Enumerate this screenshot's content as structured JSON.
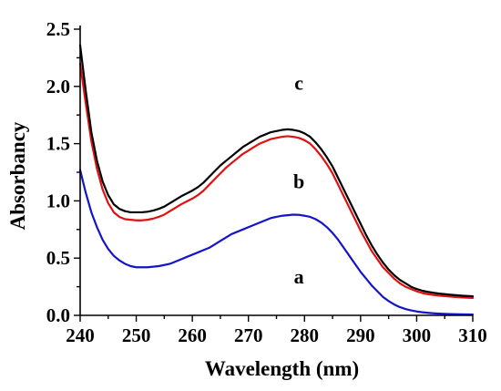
{
  "chart_data": {
    "type": "line",
    "xlabel": "Wavelength (nm)",
    "ylabel": "Absorbancy",
    "xlim": [
      240,
      310
    ],
    "ylim": [
      0.0,
      2.5
    ],
    "x_ticks": [
      "240",
      "250",
      "260",
      "270",
      "280",
      "290",
      "300",
      "310"
    ],
    "y_ticks": [
      "0.0",
      "0.5",
      "1.0",
      "1.5",
      "2.0",
      "2.5"
    ],
    "x_minor_step": 5,
    "y_minor_step": 0.25,
    "grid": false,
    "series": [
      {
        "name": "a",
        "color": "#1414c8",
        "x": [
          240,
          241,
          242,
          243,
          244,
          245,
          246,
          247,
          248,
          249,
          250,
          251,
          252,
          253,
          254,
          255,
          256,
          257,
          258,
          259,
          260,
          261,
          262,
          263,
          264,
          265,
          266,
          267,
          268,
          269,
          270,
          271,
          272,
          273,
          274,
          275,
          276,
          277,
          278,
          279,
          280,
          281,
          282,
          283,
          284,
          285,
          286,
          287,
          288,
          289,
          290,
          291,
          292,
          293,
          294,
          295,
          296,
          297,
          298,
          299,
          300,
          301,
          302,
          303,
          304,
          305,
          306,
          307,
          308,
          309,
          310
        ],
        "values": [
          1.27,
          1.07,
          0.9,
          0.77,
          0.66,
          0.58,
          0.52,
          0.48,
          0.45,
          0.43,
          0.42,
          0.42,
          0.42,
          0.425,
          0.43,
          0.44,
          0.45,
          0.47,
          0.49,
          0.51,
          0.53,
          0.55,
          0.57,
          0.59,
          0.62,
          0.65,
          0.68,
          0.71,
          0.73,
          0.75,
          0.77,
          0.79,
          0.81,
          0.83,
          0.85,
          0.86,
          0.87,
          0.875,
          0.88,
          0.878,
          0.87,
          0.86,
          0.84,
          0.81,
          0.77,
          0.72,
          0.66,
          0.59,
          0.52,
          0.45,
          0.38,
          0.32,
          0.26,
          0.21,
          0.16,
          0.125,
          0.095,
          0.072,
          0.055,
          0.043,
          0.034,
          0.027,
          0.022,
          0.018,
          0.015,
          0.013,
          0.011,
          0.01,
          0.009,
          0.008,
          0.007
        ]
      },
      {
        "name": "b",
        "color": "#e01010",
        "x": [
          240,
          241,
          242,
          243,
          244,
          245,
          246,
          247,
          248,
          249,
          250,
          251,
          252,
          253,
          254,
          255,
          256,
          257,
          258,
          259,
          260,
          261,
          262,
          263,
          264,
          265,
          266,
          267,
          268,
          269,
          270,
          271,
          272,
          273,
          274,
          275,
          276,
          277,
          278,
          279,
          280,
          281,
          282,
          283,
          284,
          285,
          286,
          287,
          288,
          289,
          290,
          291,
          292,
          293,
          294,
          295,
          296,
          297,
          298,
          299,
          300,
          301,
          302,
          303,
          304,
          305,
          306,
          307,
          308,
          309,
          310
        ],
        "values": [
          2.2,
          1.85,
          1.52,
          1.28,
          1.1,
          0.98,
          0.9,
          0.86,
          0.84,
          0.835,
          0.83,
          0.83,
          0.835,
          0.845,
          0.86,
          0.88,
          0.91,
          0.94,
          0.97,
          0.995,
          1.02,
          1.05,
          1.09,
          1.14,
          1.19,
          1.24,
          1.29,
          1.33,
          1.37,
          1.41,
          1.44,
          1.47,
          1.5,
          1.52,
          1.54,
          1.55,
          1.56,
          1.565,
          1.56,
          1.55,
          1.53,
          1.5,
          1.45,
          1.39,
          1.32,
          1.24,
          1.14,
          1.04,
          0.94,
          0.84,
          0.74,
          0.65,
          0.56,
          0.49,
          0.42,
          0.37,
          0.32,
          0.28,
          0.25,
          0.23,
          0.21,
          0.195,
          0.185,
          0.178,
          0.172,
          0.168,
          0.164,
          0.16,
          0.157,
          0.154,
          0.152
        ]
      },
      {
        "name": "c",
        "color": "#000000",
        "x": [
          240,
          241,
          242,
          243,
          244,
          245,
          246,
          247,
          248,
          249,
          250,
          251,
          252,
          253,
          254,
          255,
          256,
          257,
          258,
          259,
          260,
          261,
          262,
          263,
          264,
          265,
          266,
          267,
          268,
          269,
          270,
          271,
          272,
          273,
          274,
          275,
          276,
          277,
          278,
          279,
          280,
          281,
          282,
          283,
          284,
          285,
          286,
          287,
          288,
          289,
          290,
          291,
          292,
          293,
          294,
          295,
          296,
          297,
          298,
          299,
          300,
          301,
          302,
          303,
          304,
          305,
          306,
          307,
          308,
          309,
          310
        ],
        "values": [
          2.36,
          1.96,
          1.6,
          1.35,
          1.17,
          1.05,
          0.97,
          0.93,
          0.91,
          0.9,
          0.9,
          0.9,
          0.905,
          0.915,
          0.93,
          0.95,
          0.98,
          1.01,
          1.04,
          1.065,
          1.09,
          1.12,
          1.16,
          1.21,
          1.26,
          1.31,
          1.35,
          1.39,
          1.43,
          1.47,
          1.5,
          1.53,
          1.56,
          1.58,
          1.6,
          1.61,
          1.62,
          1.625,
          1.62,
          1.61,
          1.59,
          1.56,
          1.51,
          1.45,
          1.38,
          1.3,
          1.2,
          1.1,
          1.0,
          0.9,
          0.8,
          0.7,
          0.61,
          0.53,
          0.46,
          0.4,
          0.35,
          0.31,
          0.28,
          0.25,
          0.23,
          0.215,
          0.205,
          0.197,
          0.19,
          0.185,
          0.18,
          0.176,
          0.172,
          0.169,
          0.166
        ]
      }
    ],
    "annotations": [
      {
        "text": "c",
        "x": 279,
        "y": 1.97
      },
      {
        "text": "b",
        "x": 279,
        "y": 1.11
      },
      {
        "text": "a",
        "x": 279,
        "y": 0.28
      }
    ]
  }
}
